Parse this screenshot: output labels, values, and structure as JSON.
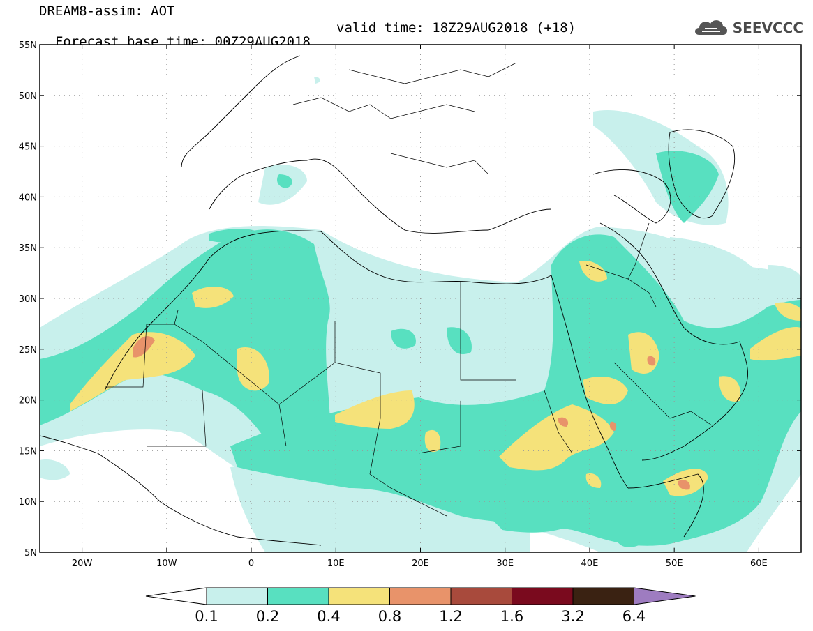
{
  "header": {
    "line1": "DREAM8-assim: AOT",
    "line2": "Forecast base time: 00Z29AUG2018",
    "valid": "valid time: 18Z29AUG2018 (+18)"
  },
  "logo": {
    "text": "SEEVCCC",
    "icon": "cloud-icon"
  },
  "map": {
    "lon_range": [
      -25,
      65
    ],
    "lat_range": [
      5,
      55
    ],
    "lat_labels": [
      "55N",
      "50N",
      "45N",
      "40N",
      "35N",
      "30N",
      "25N",
      "20N",
      "15N",
      "10N",
      "5N"
    ],
    "lon_labels": [
      "20W",
      "10W",
      "0",
      "10E",
      "20E",
      "30E",
      "40E",
      "50E",
      "60E"
    ],
    "grid": true
  },
  "colorbar": {
    "colors": [
      "#ffffff",
      "#c8f0ec",
      "#58e0c0",
      "#f5e27a",
      "#e8936a",
      "#a84a3c",
      "#7a0a1e",
      "#3a2212",
      "#9e7cc0"
    ],
    "labels": [
      "0.1",
      "0.2",
      "0.4",
      "0.8",
      "1.2",
      "1.6",
      "3.2",
      "6.4"
    ]
  }
}
